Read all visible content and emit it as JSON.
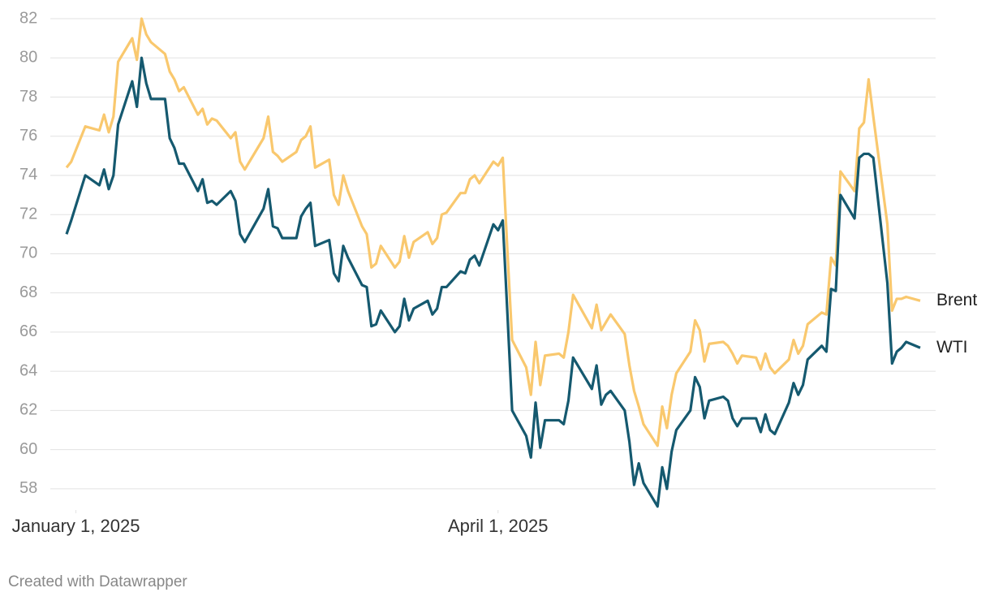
{
  "chart_data": {
    "type": "line",
    "footer": "Created with Datawrapper",
    "x": [
      "2024-12-30",
      "2024-12-31",
      "2025-01-03",
      "2025-01-06",
      "2025-01-07",
      "2025-01-08",
      "2025-01-09",
      "2025-01-10",
      "2025-01-13",
      "2025-01-14",
      "2025-01-15",
      "2025-01-16",
      "2025-01-17",
      "2025-01-20",
      "2025-01-21",
      "2025-01-22",
      "2025-01-23",
      "2025-01-24",
      "2025-01-27",
      "2025-01-28",
      "2025-01-29",
      "2025-01-30",
      "2025-01-31",
      "2025-02-03",
      "2025-02-04",
      "2025-02-05",
      "2025-02-06",
      "2025-02-10",
      "2025-02-11",
      "2025-02-12",
      "2025-02-13",
      "2025-02-14",
      "2025-02-17",
      "2025-02-18",
      "2025-02-19",
      "2025-02-20",
      "2025-02-21",
      "2025-02-24",
      "2025-02-25",
      "2025-02-26",
      "2025-02-27",
      "2025-02-28",
      "2025-03-03",
      "2025-03-04",
      "2025-03-05",
      "2025-03-06",
      "2025-03-07",
      "2025-03-10",
      "2025-03-11",
      "2025-03-12",
      "2025-03-13",
      "2025-03-14",
      "2025-03-17",
      "2025-03-18",
      "2025-03-19",
      "2025-03-20",
      "2025-03-21",
      "2025-03-24",
      "2025-03-25",
      "2025-03-26",
      "2025-03-27",
      "2025-03-28",
      "2025-03-31",
      "2025-04-01",
      "2025-04-02",
      "2025-04-03",
      "2025-04-04",
      "2025-04-07",
      "2025-04-08",
      "2025-04-09",
      "2025-04-10",
      "2025-04-11",
      "2025-04-14",
      "2025-04-15",
      "2025-04-16",
      "2025-04-17",
      "2025-04-21",
      "2025-04-22",
      "2025-04-23",
      "2025-04-24",
      "2025-04-25",
      "2025-04-28",
      "2025-04-29",
      "2025-04-30",
      "2025-05-01",
      "2025-05-02",
      "2025-05-05",
      "2025-05-06",
      "2025-05-07",
      "2025-05-08",
      "2025-05-09",
      "2025-05-12",
      "2025-05-13",
      "2025-05-14",
      "2025-05-15",
      "2025-05-16",
      "2025-05-19",
      "2025-05-20",
      "2025-05-21",
      "2025-05-22",
      "2025-05-23",
      "2025-05-26",
      "2025-05-27",
      "2025-05-28",
      "2025-05-29",
      "2025-05-30",
      "2025-06-02",
      "2025-06-03",
      "2025-06-04",
      "2025-06-05",
      "2025-06-06",
      "2025-06-09",
      "2025-06-10",
      "2025-06-11",
      "2025-06-12",
      "2025-06-13",
      "2025-06-16",
      "2025-06-17",
      "2025-06-18",
      "2025-06-19",
      "2025-06-20",
      "2025-06-23",
      "2025-06-24",
      "2025-06-25",
      "2025-06-26",
      "2025-06-27",
      "2025-06-30"
    ],
    "series": [
      {
        "name": "Brent",
        "color": "#f9c86e",
        "values": [
          74.4,
          74.7,
          76.5,
          76.3,
          77.1,
          76.2,
          77.0,
          79.8,
          81.0,
          79.9,
          82.0,
          81.2,
          80.8,
          80.2,
          79.3,
          78.9,
          78.3,
          78.5,
          77.1,
          77.4,
          76.6,
          76.9,
          76.8,
          75.9,
          76.2,
          74.7,
          74.3,
          75.9,
          77.0,
          75.2,
          75.0,
          74.7,
          75.2,
          75.8,
          76.0,
          76.5,
          74.4,
          74.8,
          73.0,
          72.5,
          74.0,
          73.2,
          71.4,
          71.0,
          69.3,
          69.5,
          70.4,
          69.3,
          69.6,
          70.9,
          69.8,
          70.6,
          71.1,
          70.5,
          70.8,
          72.0,
          72.1,
          73.1,
          73.1,
          73.8,
          74.0,
          73.6,
          74.7,
          74.5,
          74.9,
          70.1,
          65.6,
          64.2,
          62.8,
          65.5,
          63.3,
          64.8,
          64.9,
          64.7,
          66.0,
          67.9,
          66.2,
          67.4,
          66.1,
          66.5,
          66.9,
          65.9,
          64.3,
          63.0,
          62.2,
          61.3,
          60.2,
          62.2,
          61.1,
          62.8,
          63.9,
          65.0,
          66.6,
          66.1,
          64.5,
          65.4,
          65.5,
          65.3,
          64.9,
          64.4,
          64.8,
          64.7,
          64.1,
          64.9,
          64.2,
          63.9,
          64.6,
          65.6,
          64.9,
          65.3,
          66.4,
          67.0,
          66.9,
          69.8,
          69.4,
          74.2,
          73.2,
          76.4,
          76.7,
          78.9,
          77.0,
          71.5,
          67.1,
          67.7,
          67.7,
          67.8,
          67.6
        ]
      },
      {
        "name": "WTI",
        "color": "#15596f",
        "values": [
          71.0,
          71.7,
          74.0,
          73.5,
          74.3,
          73.3,
          74.0,
          76.6,
          78.8,
          77.5,
          80.0,
          78.7,
          77.9,
          77.9,
          75.9,
          75.4,
          74.6,
          74.6,
          73.2,
          73.8,
          72.6,
          72.7,
          72.5,
          73.2,
          72.7,
          71.0,
          70.6,
          72.3,
          73.3,
          71.4,
          71.3,
          70.8,
          70.8,
          71.9,
          72.3,
          72.6,
          70.4,
          70.7,
          69.0,
          68.6,
          70.4,
          69.8,
          68.4,
          68.3,
          66.3,
          66.4,
          67.1,
          66.0,
          66.3,
          67.7,
          66.6,
          67.2,
          67.6,
          66.9,
          67.2,
          68.3,
          68.3,
          69.1,
          69.0,
          69.7,
          69.9,
          69.4,
          71.5,
          71.2,
          71.7,
          66.9,
          62.0,
          60.7,
          59.6,
          62.4,
          60.1,
          61.5,
          61.5,
          61.3,
          62.5,
          64.7,
          63.1,
          64.3,
          62.3,
          62.8,
          63.0,
          62.0,
          60.4,
          58.2,
          59.3,
          58.3,
          57.1,
          59.1,
          58.0,
          59.9,
          61.0,
          62.0,
          63.7,
          63.2,
          61.6,
          62.5,
          62.7,
          62.5,
          61.6,
          61.2,
          61.6,
          61.6,
          60.9,
          61.8,
          61.0,
          60.8,
          62.4,
          63.4,
          62.8,
          63.3,
          64.6,
          65.3,
          65.0,
          68.2,
          68.1,
          73.0,
          71.8,
          74.9,
          75.1,
          75.1,
          74.9,
          68.5,
          64.4,
          65.0,
          65.2,
          65.5,
          65.2
        ]
      }
    ],
    "xlim": [
      "2024-12-30",
      "2025-06-30"
    ],
    "xticks": [
      {
        "value": "2025-01-01",
        "label": "January 1, 2025"
      },
      {
        "value": "2025-04-01",
        "label": "April 1, 2025"
      }
    ],
    "ylim": [
      57,
      82
    ],
    "yticks": [
      58,
      60,
      62,
      64,
      66,
      68,
      70,
      72,
      74,
      76,
      78,
      80,
      82
    ],
    "grid": true
  }
}
